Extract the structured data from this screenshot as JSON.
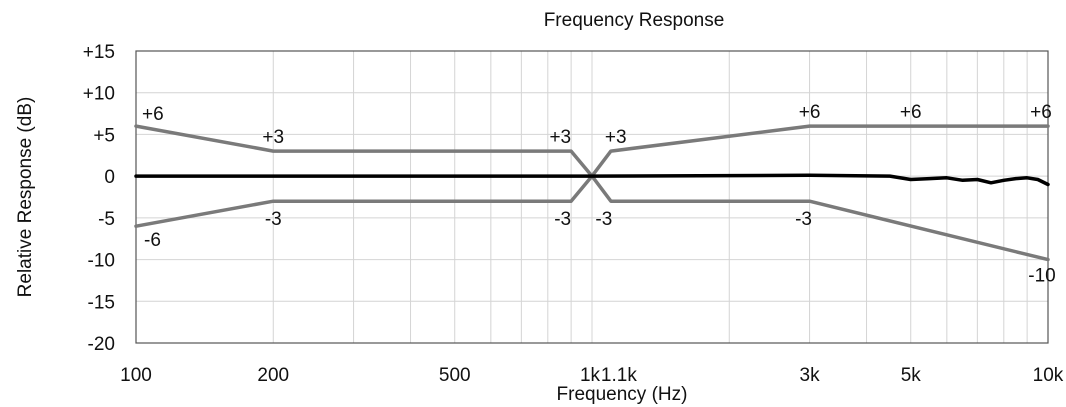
{
  "chart_data": {
    "type": "line",
    "title": "Frequency Response",
    "xlabel": "Frequency (Hz)",
    "ylabel": "Relative Response  (dB)",
    "xscale": "log",
    "xlim": [
      100,
      10000
    ],
    "ylim": [
      -20,
      15
    ],
    "grid": true,
    "x_ticks": [
      {
        "value": 100,
        "label": "100"
      },
      {
        "value": 200,
        "label": "200"
      },
      {
        "value": 500,
        "label": "500"
      },
      {
        "value": 1000,
        "label": "1k"
      },
      {
        "value": 1100,
        "label": "1.1k"
      },
      {
        "value": 3000,
        "label": "3k"
      },
      {
        "value": 5000,
        "label": "5k"
      },
      {
        "value": 10000,
        "label": "10k"
      }
    ],
    "y_ticks": [
      {
        "value": 15,
        "label": "+15"
      },
      {
        "value": 10,
        "label": "+10"
      },
      {
        "value": 5,
        "label": "+5"
      },
      {
        "value": 0,
        "label": "0"
      },
      {
        "value": -5,
        "label": "-5"
      },
      {
        "value": -10,
        "label": "-10"
      },
      {
        "value": -15,
        "label": "-15"
      },
      {
        "value": -20,
        "label": "-20"
      }
    ],
    "x_gridlines": [
      100,
      200,
      300,
      400,
      500,
      600,
      700,
      800,
      900,
      1000,
      2000,
      3000,
      4000,
      5000,
      6000,
      7000,
      8000,
      9000,
      10000
    ],
    "y_gridlines": [
      -20,
      -15,
      -10,
      -5,
      0,
      5,
      10,
      15
    ],
    "series": [
      {
        "role": "upper-tolerance",
        "color": "#7a7a7a",
        "points": [
          [
            100,
            6
          ],
          [
            200,
            3
          ],
          [
            900,
            3
          ],
          [
            1000,
            0
          ],
          [
            1100,
            3
          ],
          [
            3000,
            6
          ],
          [
            10000,
            6
          ]
        ]
      },
      {
        "role": "lower-tolerance",
        "color": "#7a7a7a",
        "points": [
          [
            100,
            -6
          ],
          [
            200,
            -3
          ],
          [
            900,
            -3
          ],
          [
            1000,
            0
          ],
          [
            1100,
            -3
          ],
          [
            3000,
            -3
          ],
          [
            10000,
            -10
          ]
        ]
      },
      {
        "role": "measured-response",
        "color": "#000000",
        "points": [
          [
            100,
            0
          ],
          [
            1000,
            0
          ],
          [
            3000,
            0.1
          ],
          [
            4500,
            0
          ],
          [
            5000,
            -0.4
          ],
          [
            5500,
            -0.3
          ],
          [
            6000,
            -0.2
          ],
          [
            6500,
            -0.5
          ],
          [
            7000,
            -0.4
          ],
          [
            7500,
            -0.8
          ],
          [
            8000,
            -0.5
          ],
          [
            8500,
            -0.3
          ],
          [
            9000,
            -0.2
          ],
          [
            9500,
            -0.4
          ],
          [
            10000,
            -1.0
          ]
        ]
      }
    ],
    "annotations": [
      {
        "x": 100,
        "y": 6,
        "label": "+6",
        "anchor": "start",
        "dx": 6,
        "dy": -6
      },
      {
        "x": 200,
        "y": 3,
        "label": "+3",
        "anchor": "middle",
        "dx": 0,
        "dy": -8
      },
      {
        "x": 900,
        "y": 3,
        "label": "+3",
        "anchor": "end",
        "dx": 0,
        "dy": -8
      },
      {
        "x": 1100,
        "y": 3,
        "label": "+3",
        "anchor": "start",
        "dx": -6,
        "dy": -8
      },
      {
        "x": 3000,
        "y": 6,
        "label": "+6",
        "anchor": "middle",
        "dx": 0,
        "dy": -8
      },
      {
        "x": 5000,
        "y": 6,
        "label": "+6",
        "anchor": "middle",
        "dx": 0,
        "dy": -8
      },
      {
        "x": 10000,
        "y": 6,
        "label": "+6",
        "anchor": "middle",
        "dx": -7,
        "dy": -8
      },
      {
        "x": 100,
        "y": -6,
        "label": "-6",
        "anchor": "start",
        "dx": 8,
        "dy": 20
      },
      {
        "x": 200,
        "y": -3,
        "label": "-3",
        "anchor": "middle",
        "dx": 0,
        "dy": 24
      },
      {
        "x": 900,
        "y": -3,
        "label": "-3",
        "anchor": "end",
        "dx": 0,
        "dy": 24
      },
      {
        "x": 1100,
        "y": -3,
        "label": "-3",
        "anchor": "middle",
        "dx": -7,
        "dy": 24
      },
      {
        "x": 3000,
        "y": -3,
        "label": "-3",
        "anchor": "middle",
        "dx": -6,
        "dy": 24
      },
      {
        "x": 10000,
        "y": -10,
        "label": "-10",
        "anchor": "middle",
        "dx": -6,
        "dy": 22
      }
    ]
  }
}
